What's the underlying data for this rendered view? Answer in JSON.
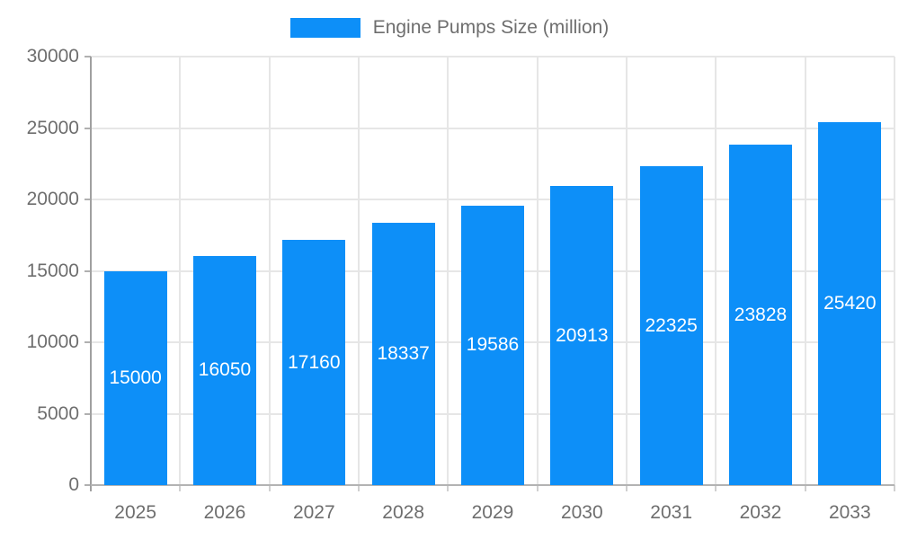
{
  "chart_data": {
    "type": "bar",
    "title": "Engine Pumps Size (million)",
    "legend_position": "top",
    "categories": [
      "2025",
      "2026",
      "2027",
      "2028",
      "2029",
      "2030",
      "2031",
      "2032",
      "2033"
    ],
    "values": [
      15000,
      16050,
      17160,
      18337,
      19586,
      20913,
      22325,
      23828,
      25420
    ],
    "xlabel": "",
    "ylabel": "",
    "ylim": [
      0,
      30000
    ],
    "ytick_step": 5000,
    "grid": true,
    "value_labels": "inside-center",
    "colors": {
      "bar": "#0d8ff8",
      "value_label": "#ffffff",
      "axis_text": "#6e6e6e",
      "legend_text": "#6e6e6e",
      "gridline": "#e6e6e6",
      "y_axis_line": "#a0a0a0",
      "x_axis_line": "#b3b3b3",
      "y_tick": "#b0b0b0",
      "x_tick": "#d0d0d0",
      "background": "#ffffff"
    }
  }
}
